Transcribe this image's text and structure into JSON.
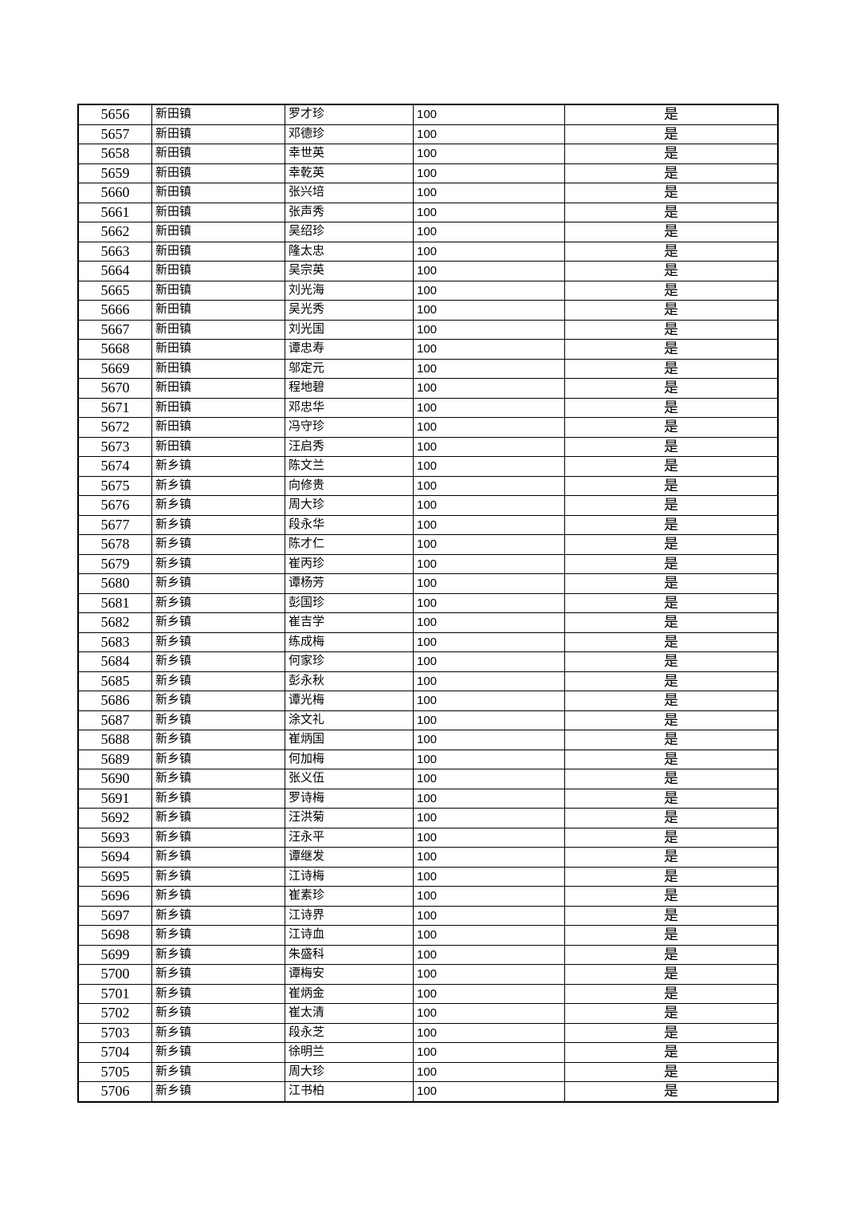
{
  "rows": [
    [
      "5656",
      "新田镇",
      "罗才珍",
      "100",
      "是"
    ],
    [
      "5657",
      "新田镇",
      "邓德珍",
      "100",
      "是"
    ],
    [
      "5658",
      "新田镇",
      "幸世英",
      "100",
      "是"
    ],
    [
      "5659",
      "新田镇",
      "幸乾英",
      "100",
      "是"
    ],
    [
      "5660",
      "新田镇",
      "张兴培",
      "100",
      "是"
    ],
    [
      "5661",
      "新田镇",
      "张声秀",
      "100",
      "是"
    ],
    [
      "5662",
      "新田镇",
      "吴绍珍",
      "100",
      "是"
    ],
    [
      "5663",
      "新田镇",
      "隆太忠",
      "100",
      "是"
    ],
    [
      "5664",
      "新田镇",
      "吴宗英",
      "100",
      "是"
    ],
    [
      "5665",
      "新田镇",
      "刘光海",
      "100",
      "是"
    ],
    [
      "5666",
      "新田镇",
      "吴光秀",
      "100",
      "是"
    ],
    [
      "5667",
      "新田镇",
      "刘光国",
      "100",
      "是"
    ],
    [
      "5668",
      "新田镇",
      "谭忠寿",
      "100",
      "是"
    ],
    [
      "5669",
      "新田镇",
      "邬定元",
      "100",
      "是"
    ],
    [
      "5670",
      "新田镇",
      "程地碧",
      "100",
      "是"
    ],
    [
      "5671",
      "新田镇",
      "邓忠华",
      "100",
      "是"
    ],
    [
      "5672",
      "新田镇",
      "冯守珍",
      "100",
      "是"
    ],
    [
      "5673",
      "新田镇",
      "汪启秀",
      "100",
      "是"
    ],
    [
      "5674",
      "新乡镇",
      "陈文兰",
      "100",
      "是"
    ],
    [
      "5675",
      "新乡镇",
      "向修贵",
      "100",
      "是"
    ],
    [
      "5676",
      "新乡镇",
      "周大珍",
      "100",
      "是"
    ],
    [
      "5677",
      "新乡镇",
      "段永华",
      "100",
      "是"
    ],
    [
      "5678",
      "新乡镇",
      "陈才仁",
      "100",
      "是"
    ],
    [
      "5679",
      "新乡镇",
      "崔丙珍",
      "100",
      "是"
    ],
    [
      "5680",
      "新乡镇",
      "谭杨芳",
      "100",
      "是"
    ],
    [
      "5681",
      "新乡镇",
      "彭国珍",
      "100",
      "是"
    ],
    [
      "5682",
      "新乡镇",
      "崔吉学",
      "100",
      "是"
    ],
    [
      "5683",
      "新乡镇",
      "练成梅",
      "100",
      "是"
    ],
    [
      "5684",
      "新乡镇",
      "何家珍",
      "100",
      "是"
    ],
    [
      "5685",
      "新乡镇",
      "彭永秋",
      "100",
      "是"
    ],
    [
      "5686",
      "新乡镇",
      "谭光梅",
      "100",
      "是"
    ],
    [
      "5687",
      "新乡镇",
      "涂文礼",
      "100",
      "是"
    ],
    [
      "5688",
      "新乡镇",
      "崔炳国",
      "100",
      "是"
    ],
    [
      "5689",
      "新乡镇",
      "何加梅",
      "100",
      "是"
    ],
    [
      "5690",
      "新乡镇",
      "张义伍",
      "100",
      "是"
    ],
    [
      "5691",
      "新乡镇",
      "罗诗梅",
      "100",
      "是"
    ],
    [
      "5692",
      "新乡镇",
      "汪洪菊",
      "100",
      "是"
    ],
    [
      "5693",
      "新乡镇",
      "汪永平",
      "100",
      "是"
    ],
    [
      "5694",
      "新乡镇",
      "谭继发",
      "100",
      "是"
    ],
    [
      "5695",
      "新乡镇",
      "江诗梅",
      "100",
      "是"
    ],
    [
      "5696",
      "新乡镇",
      "崔素珍",
      "100",
      "是"
    ],
    [
      "5697",
      "新乡镇",
      "江诗界",
      "100",
      "是"
    ],
    [
      "5698",
      "新乡镇",
      "江诗血",
      "100",
      "是"
    ],
    [
      "5699",
      "新乡镇",
      "朱盛科",
      "100",
      "是"
    ],
    [
      "5700",
      "新乡镇",
      "谭梅安",
      "100",
      "是"
    ],
    [
      "5701",
      "新乡镇",
      "崔炳金",
      "100",
      "是"
    ],
    [
      "5702",
      "新乡镇",
      "崔太清",
      "100",
      "是"
    ],
    [
      "5703",
      "新乡镇",
      "段永芝",
      "100",
      "是"
    ],
    [
      "5704",
      "新乡镇",
      "徐明兰",
      "100",
      "是"
    ],
    [
      "5705",
      "新乡镇",
      "周大珍",
      "100",
      "是"
    ],
    [
      "5706",
      "新乡镇",
      "江书柏",
      "100",
      "是"
    ]
  ]
}
